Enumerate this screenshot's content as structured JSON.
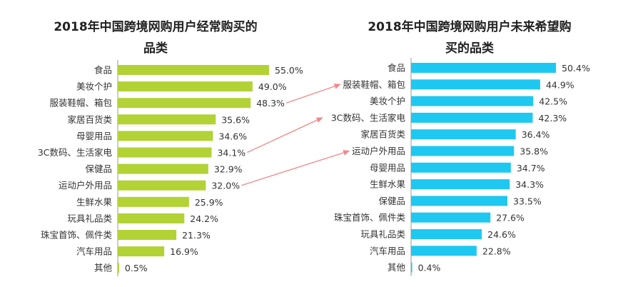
{
  "chart_data": [
    {
      "type": "bar",
      "orientation": "horizontal",
      "title_lines": [
        "2018年中国跨境网购用户经常购买的",
        "品类"
      ],
      "categories": [
        "食品",
        "美妆个护",
        "服装鞋帽、箱包",
        "家居百货类",
        "母婴用品",
        "3C数码、生活家电",
        "保健品",
        "运动户外用品",
        "生鲜水果",
        "玩具礼品类",
        "珠宝首饰、佩件类",
        "汽车用品",
        "其他"
      ],
      "values": [
        55.0,
        49.0,
        48.3,
        35.6,
        34.6,
        34.1,
        32.9,
        32.0,
        25.9,
        24.2,
        21.3,
        16.9,
        0.5
      ],
      "labels": [
        "55.0%",
        "49.0%",
        "48.3%",
        "35.6%",
        "34.6%",
        "34.1%",
        "32.9%",
        "32.0%",
        "25.9%",
        "24.2%",
        "21.3%",
        "16.9%",
        "0.5%"
      ],
      "color": "#b2d235",
      "grid": false
    },
    {
      "type": "bar",
      "orientation": "horizontal",
      "title_lines": [
        "2018年中国跨境网购用户未来希望购",
        "买的品类"
      ],
      "categories": [
        "食品",
        "服装鞋帽、箱包",
        "美妆个护",
        "3C数码、生活家电",
        "家居百货类",
        "运动户外用品",
        "母婴用品",
        "生鲜水果",
        "保健品",
        "珠宝首饰、佩件类",
        "玩具礼品类",
        "汽车用品",
        "其他"
      ],
      "values": [
        50.4,
        44.9,
        42.5,
        42.3,
        36.4,
        35.8,
        34.7,
        34.3,
        33.5,
        27.6,
        24.6,
        22.8,
        0.4
      ],
      "labels": [
        "50.4%",
        "44.9%",
        "42.5%",
        "42.3%",
        "36.4%",
        "35.8%",
        "34.7%",
        "34.3%",
        "33.5%",
        "27.6%",
        "24.6%",
        "22.8%",
        "0.4%"
      ],
      "color": "#1fc8f0",
      "grid": false
    }
  ],
  "annotations": {
    "arrow_color": "#f0888a",
    "arrows": [
      {
        "from": "服装鞋帽、箱包",
        "to": "服装鞋帽、箱包"
      },
      {
        "from": "3C数码、生活家电",
        "to": "3C数码、生活家电"
      },
      {
        "from": "运动户外用品",
        "to": "运动户外用品"
      }
    ]
  }
}
